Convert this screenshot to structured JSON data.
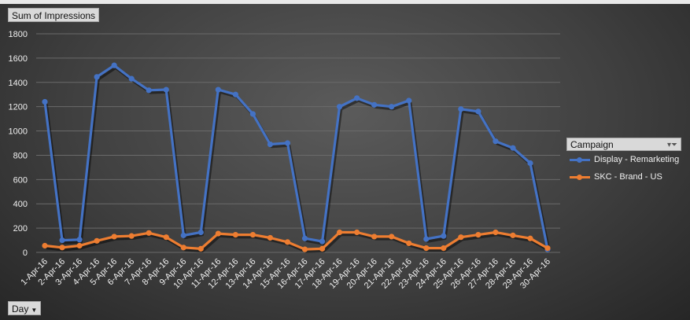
{
  "field_buttons": {
    "values_label": "Sum of Impressions",
    "axis_label": "Day"
  },
  "legend": {
    "title": "Campaign"
  },
  "chart_data": {
    "type": "line",
    "categories": [
      "1-Apr-16",
      "2-Apr-16",
      "3-Apr-16",
      "4-Apr-16",
      "5-Apr-16",
      "6-Apr-16",
      "7-Apr-16",
      "8-Apr-16",
      "9-Apr-16",
      "10-Apr-16",
      "11-Apr-16",
      "12-Apr-16",
      "13-Apr-16",
      "14-Apr-16",
      "15-Apr-16",
      "16-Apr-16",
      "17-Apr-16",
      "18-Apr-16",
      "19-Apr-16",
      "20-Apr-16",
      "21-Apr-16",
      "22-Apr-16",
      "23-Apr-16",
      "24-Apr-16",
      "25-Apr-16",
      "26-Apr-16",
      "27-Apr-16",
      "28-Apr-16",
      "29-Apr-16",
      "30-Apr-16"
    ],
    "series": [
      {
        "name": "Display - Remarketing",
        "color": "#4472c4",
        "values": [
          1240,
          100,
          105,
          1445,
          1540,
          1430,
          1335,
          1340,
          140,
          165,
          1340,
          1300,
          1140,
          890,
          900,
          115,
          90,
          1200,
          1270,
          1215,
          1200,
          1250,
          110,
          135,
          1180,
          1160,
          915,
          860,
          735,
          25
        ]
      },
      {
        "name": "SKC - Brand - US",
        "color": "#ed7d31",
        "values": [
          55,
          40,
          55,
          95,
          130,
          135,
          160,
          125,
          40,
          30,
          155,
          145,
          145,
          120,
          85,
          25,
          30,
          165,
          165,
          130,
          130,
          75,
          35,
          35,
          125,
          145,
          165,
          140,
          115,
          35
        ]
      }
    ],
    "xlabel": "",
    "ylabel": "",
    "ylim": [
      0,
      1800
    ],
    "yticks": [
      0,
      200,
      400,
      600,
      800,
      1000,
      1200,
      1400,
      1600,
      1800
    ],
    "grid": true,
    "legend_position": "right"
  }
}
